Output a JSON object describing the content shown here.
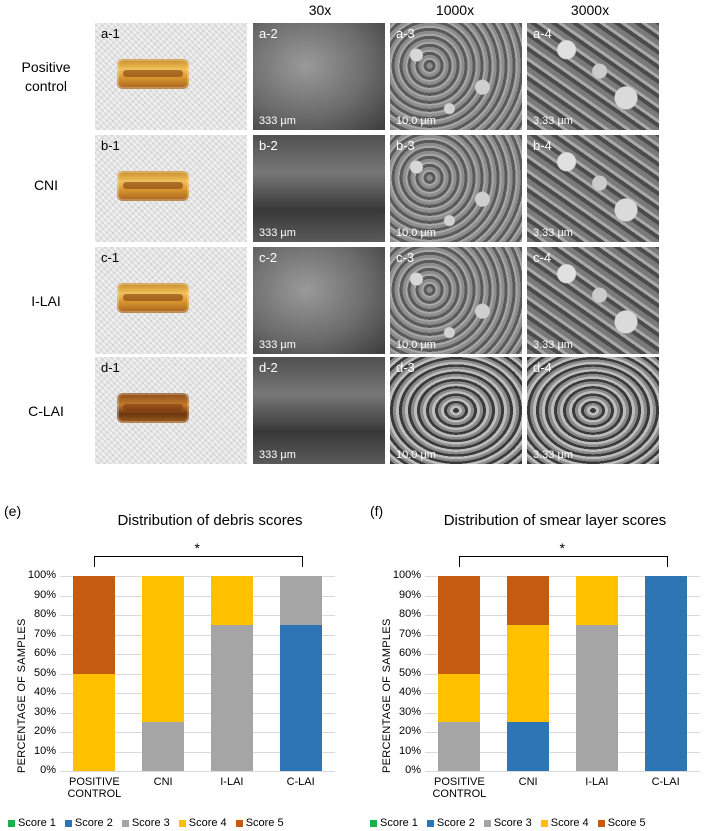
{
  "figure": {
    "column_headers": [
      "30x",
      "1000x",
      "3000x"
    ],
    "rows": [
      {
        "label": [
          "Positive",
          "control"
        ],
        "tags": [
          "a-1",
          "a-2",
          "a-3",
          "a-4"
        ],
        "scales": [
          "333 µm",
          "10.0 µm",
          "3.33 µm"
        ]
      },
      {
        "label": [
          "CNI"
        ],
        "tags": [
          "b-1",
          "b-2",
          "b-3",
          "b-4"
        ],
        "scales": [
          "333 µm",
          "10.0 µm",
          "3.33 µm"
        ]
      },
      {
        "label": [
          "I-LAI"
        ],
        "tags": [
          "c-1",
          "c-2",
          "c-3",
          "c-4"
        ],
        "scales": [
          "333 µm",
          "10.0 µm",
          "3.33 µm"
        ]
      },
      {
        "label": [
          "C-LAI"
        ],
        "tags": [
          "d-1",
          "d-2",
          "d-3",
          "d-4"
        ],
        "scales": [
          "333 µm",
          "10.0 µm",
          "3.33 µm"
        ]
      }
    ]
  },
  "chart_data": [
    {
      "panel": "(e)",
      "type": "bar",
      "stacked": true,
      "title": "Distribution of debris scores",
      "ylabel": "PERCENTAGE OF SAMPLES",
      "xlabel": "",
      "ylim": [
        0,
        100
      ],
      "yticks": [
        "0%",
        "10%",
        "20%",
        "30%",
        "40%",
        "50%",
        "60%",
        "70%",
        "80%",
        "90%",
        "100%"
      ],
      "categories": [
        "POSITIVE CONTROL",
        "CNI",
        "I-LAI",
        "C-LAI"
      ],
      "category_lines": [
        [
          "POSITIVE",
          "CONTROL"
        ],
        [
          "CNI"
        ],
        [
          "I-LAI"
        ],
        [
          "C-LAI"
        ]
      ],
      "significance": "*",
      "grid": true,
      "legend_position": "bottom",
      "series": [
        {
          "name": "Score 1",
          "color": "#17b24a",
          "values": [
            0,
            0,
            0,
            0
          ]
        },
        {
          "name": "Score 2",
          "color": "#2e75b6",
          "values": [
            0,
            0,
            0,
            75
          ]
        },
        {
          "name": "Score 3",
          "color": "#a5a5a5",
          "values": [
            0,
            25,
            75,
            25
          ]
        },
        {
          "name": "Score 4",
          "color": "#ffc000",
          "values": [
            50,
            75,
            25,
            0
          ]
        },
        {
          "name": "Score 5",
          "color": "#c55a11",
          "values": [
            50,
            0,
            0,
            0
          ]
        }
      ]
    },
    {
      "panel": "(f)",
      "type": "bar",
      "stacked": true,
      "title": "Distribution of smear layer scores",
      "ylabel": "PERCENTAGE OF SAMPLES",
      "xlabel": "",
      "ylim": [
        0,
        100
      ],
      "yticks": [
        "0%",
        "10%",
        "20%",
        "30%",
        "40%",
        "50%",
        "60%",
        "70%",
        "80%",
        "90%",
        "100%"
      ],
      "categories": [
        "POSITIVE CONTROL",
        "CNI",
        "I-LAI",
        "C-LAI"
      ],
      "category_lines": [
        [
          "POSITIVE",
          "CONTROL"
        ],
        [
          "CNI"
        ],
        [
          "I-LAI"
        ],
        [
          "C-LAI"
        ]
      ],
      "significance": "*",
      "grid": true,
      "legend_position": "bottom",
      "series": [
        {
          "name": "Score 1",
          "color": "#17b24a",
          "values": [
            0,
            0,
            0,
            0
          ]
        },
        {
          "name": "Score 2",
          "color": "#2e75b6",
          "values": [
            0,
            25,
            0,
            100
          ]
        },
        {
          "name": "Score 3",
          "color": "#a5a5a5",
          "values": [
            25,
            0,
            75,
            0
          ]
        },
        {
          "name": "Score 4",
          "color": "#ffc000",
          "values": [
            25,
            50,
            25,
            0
          ]
        },
        {
          "name": "Score 5",
          "color": "#c55a11",
          "values": [
            50,
            25,
            0,
            0
          ]
        }
      ]
    }
  ]
}
